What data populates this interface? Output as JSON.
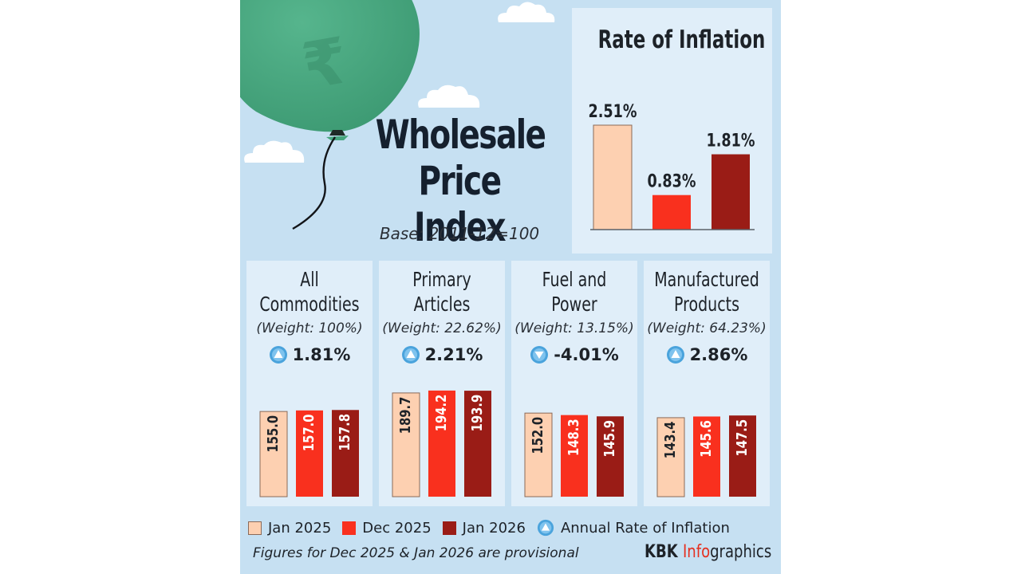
{
  "header": {
    "title_line1": "Wholesale",
    "title_line2": "Price Index",
    "base": "Base: 2011-12=100"
  },
  "colors": {
    "jan2025": "#fdd0b1",
    "dec2025": "#f9301e",
    "jan2026": "#9a1c16",
    "panel": "#e0eef9",
    "background": "#c6e0f2",
    "indicator": "#4aa3dc",
    "balloon": "#46a57e",
    "brand_accent": "#e53020"
  },
  "chart_data": [
    {
      "type": "bar",
      "title": "Rate of Inflation",
      "categories": [
        "Jan 2025",
        "Dec 2025",
        "Jan 2026"
      ],
      "values": [
        2.51,
        0.83,
        1.81
      ],
      "value_labels": [
        "2.51%",
        "0.83%",
        "1.81%"
      ],
      "unit": "%",
      "ylim": [
        0,
        2.51
      ],
      "grid": false,
      "xlabel": "",
      "ylabel": ""
    },
    {
      "type": "bar",
      "title": "All Commodities",
      "title_lines": [
        "All",
        "Commodities"
      ],
      "weight": "(Weight: 100%)",
      "annual_rate": "1.81%",
      "direction": "up",
      "categories": [
        "Jan 2025",
        "Dec 2025",
        "Jan 2026"
      ],
      "values": [
        155.0,
        157.0,
        157.8
      ],
      "value_labels": [
        "155.0",
        "157.0",
        "157.8"
      ],
      "ylim": [
        0,
        195
      ]
    },
    {
      "type": "bar",
      "title": "Primary Articles",
      "title_lines": [
        "Primary",
        "Articles"
      ],
      "weight": "(Weight: 22.62%)",
      "annual_rate": "2.21%",
      "direction": "up",
      "categories": [
        "Jan 2025",
        "Dec 2025",
        "Jan 2026"
      ],
      "values": [
        189.7,
        194.2,
        193.9
      ],
      "value_labels": [
        "189.7",
        "194.2",
        "193.9"
      ],
      "ylim": [
        0,
        195
      ]
    },
    {
      "type": "bar",
      "title": "Fuel and Power",
      "title_lines": [
        "Fuel and",
        "Power"
      ],
      "weight": "(Weight: 13.15%)",
      "annual_rate": "-4.01%",
      "direction": "down",
      "categories": [
        "Jan 2025",
        "Dec 2025",
        "Jan 2026"
      ],
      "values": [
        152.0,
        148.3,
        145.9
      ],
      "value_labels": [
        "152.0",
        "148.3",
        "145.9"
      ],
      "ylim": [
        0,
        195
      ]
    },
    {
      "type": "bar",
      "title": "Manufactured Products",
      "title_lines": [
        "Manufactured",
        "Products"
      ],
      "weight": "(Weight: 64.23%)",
      "annual_rate": "2.86%",
      "direction": "up",
      "categories": [
        "Jan 2025",
        "Dec 2025",
        "Jan 2026"
      ],
      "values": [
        143.4,
        145.6,
        147.5
      ],
      "value_labels": [
        "143.4",
        "145.6",
        "147.5"
      ],
      "ylim": [
        0,
        195
      ]
    }
  ],
  "legend": {
    "items": [
      {
        "label": "Jan 2025",
        "icon": "swatch-light-peach"
      },
      {
        "label": "Dec 2025",
        "icon": "swatch-red"
      },
      {
        "label": "Jan 2026",
        "icon": "swatch-dark-red"
      },
      {
        "label": "Annual Rate of Inflation",
        "icon": "up-arrow-circle-icon"
      }
    ]
  },
  "footer": {
    "note": "Figures for Dec 2025 & Jan 2026 are provisional",
    "brand_part1": "KBK ",
    "brand_part2": "Info",
    "brand_part3": "graphics"
  },
  "decor": {
    "balloon_icon": "rupee-coin-balloon",
    "cloud_icon": "cloud"
  }
}
